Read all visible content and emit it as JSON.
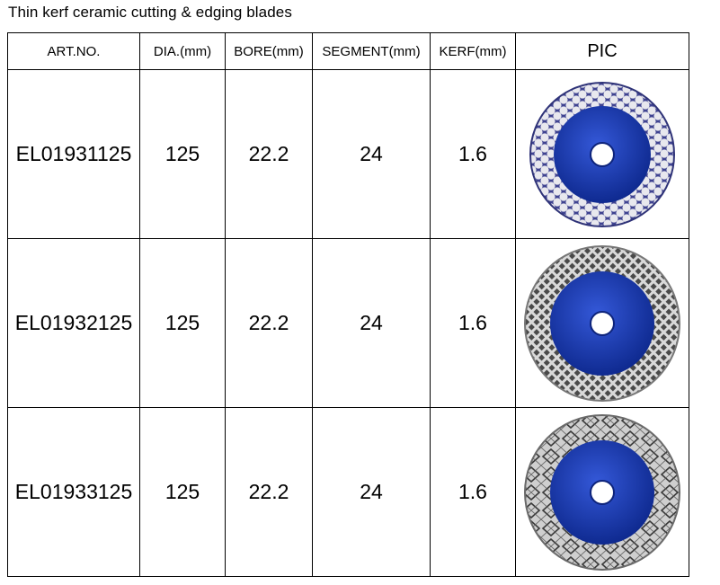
{
  "title": "Thin kerf ceramic cutting & edging blades",
  "columns": [
    "ART.NO.",
    "DIA.(mm)",
    "BORE(mm)",
    "SEGMENT(mm)",
    "KERF(mm)",
    "PIC"
  ],
  "rows": [
    {
      "art_no": "EL01931125",
      "dia": "125",
      "bore": "22.2",
      "segment": "24",
      "kerf": "1.6",
      "pic": "blade-hexagon-segment-icon"
    },
    {
      "art_no": "EL01932125",
      "dia": "125",
      "bore": "22.2",
      "segment": "24",
      "kerf": "1.6",
      "pic": "blade-mesh-turbo-icon"
    },
    {
      "art_no": "EL01933125",
      "dia": "125",
      "bore": "22.2",
      "segment": "24",
      "kerf": "1.6",
      "pic": "blade-star-pattern-icon"
    }
  ],
  "colors": {
    "blade_core": "#1f3fb0",
    "blade_core_dark": "#0d237a",
    "rim_hex": "#4a4f98",
    "rim_mesh": "#555555",
    "rim_star": "#8a8a8a"
  }
}
